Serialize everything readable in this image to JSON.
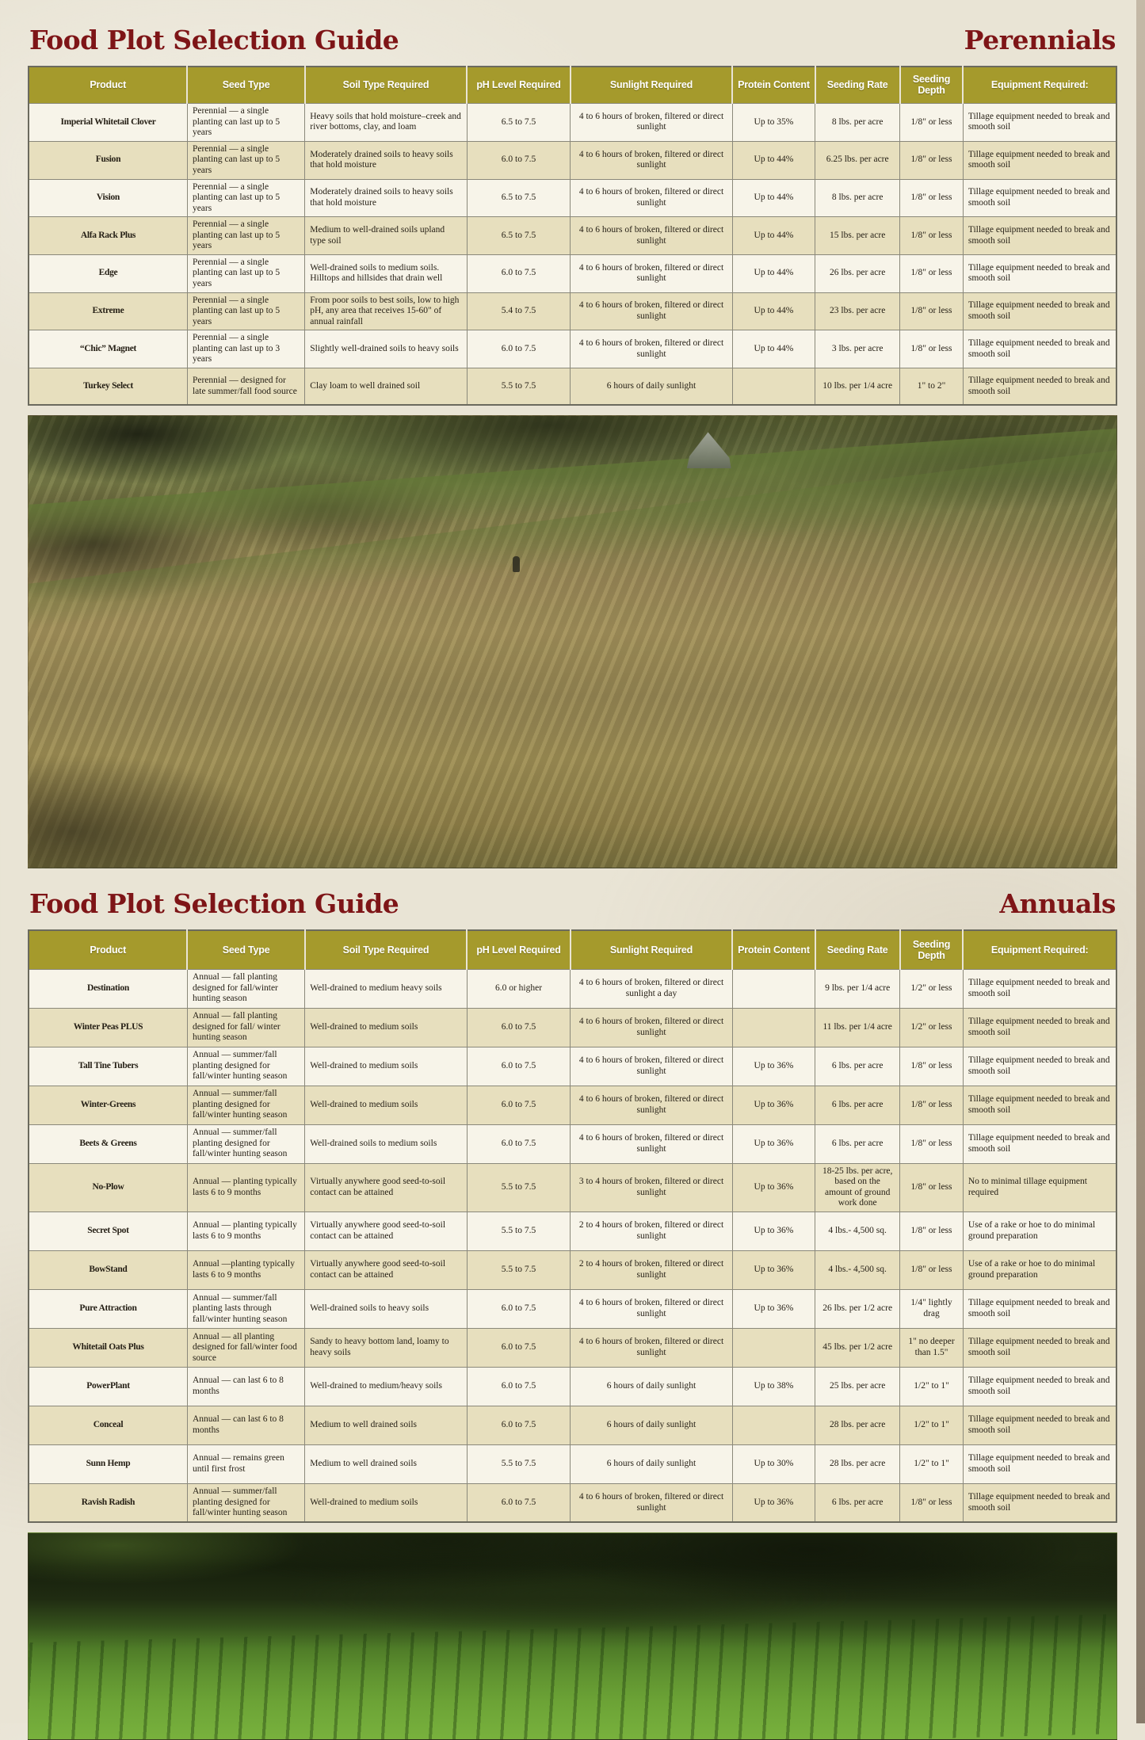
{
  "sections": {
    "perennials": {
      "title": "Food Plot Selection Guide",
      "subtitle": "Perennials"
    },
    "annuals": {
      "title": "Food Plot Selection Guide",
      "subtitle": "Annuals"
    }
  },
  "colors": {
    "title_maroon": "#7e1517",
    "product_maroon": "#8c1a1b",
    "header_olive": "#a59a2c",
    "row_tan": "#e7dfbe",
    "row_light": "#f7f4e9",
    "page_background": "#e9e4d5"
  },
  "columns": [
    "Product",
    "Seed Type",
    "Soil Type Required",
    "pH Level Required",
    "Sunlight Required",
    "Protein Content",
    "Seeding Rate",
    "Seeding Depth",
    "Equipment Required:"
  ],
  "perennials": {
    "rows": [
      {
        "product": "Imperial Whitetail Clover",
        "seed_type": "Perennial — a single planting can last up to 5 years",
        "soil_type": "Heavy soils that hold moisture–creek and river bottoms, clay, and loam",
        "ph": "6.5 to 7.5",
        "sunlight": "4 to 6 hours of broken, filtered or direct sunlight",
        "protein": "Up to 35%",
        "rate": "8 lbs. per acre",
        "depth": "1/8\" or less",
        "equipment": "Tillage equipment needed to break and smooth soil"
      },
      {
        "product": "Fusion",
        "seed_type": "Perennial — a single planting can last up to 5 years",
        "soil_type": "Moderately drained soils to heavy soils that hold moisture",
        "ph": "6.0 to 7.5",
        "sunlight": "4 to 6 hours of broken, filtered or direct sunlight",
        "protein": "Up to 44%",
        "rate": "6.25 lbs. per acre",
        "depth": "1/8\" or less",
        "equipment": "Tillage equipment needed to break and smooth soil"
      },
      {
        "product": "Vision",
        "seed_type": "Perennial — a single planting can last up to 5 years",
        "soil_type": "Moderately drained soils to heavy soils that hold moisture",
        "ph": "6.5 to 7.5",
        "sunlight": "4 to 6 hours of broken, filtered or direct sunlight",
        "protein": "Up to 44%",
        "rate": "8 lbs. per acre",
        "depth": "1/8\" or less",
        "equipment": "Tillage equipment needed to break and smooth soil"
      },
      {
        "product": "Alfa Rack Plus",
        "seed_type": "Perennial — a single planting can last up to 5 years",
        "soil_type": "Medium to well-drained soils  upland type soil",
        "ph": "6.5 to 7.5",
        "sunlight": "4 to 6 hours of broken, filtered or direct sunlight",
        "protein": "Up to 44%",
        "rate": "15 lbs. per acre",
        "depth": "1/8\" or less",
        "equipment": "Tillage equipment needed to break and smooth soil"
      },
      {
        "product": "Edge",
        "seed_type": "Perennial — a single planting can last up to 5 years",
        "soil_type": "Well-drained soils to medium soils. Hilltops and hillsides that drain well",
        "ph": "6.0 to 7.5",
        "sunlight": "4 to 6 hours of broken, filtered or direct sunlight",
        "protein": "Up to 44%",
        "rate": "26 lbs. per acre",
        "depth": "1/8\" or less",
        "equipment": "Tillage equipment needed to break and smooth soil"
      },
      {
        "product": "Extreme",
        "seed_type": "Perennial — a single planting can last up to 5 years",
        "soil_type": "From poor soils to best soils, low to high pH, any area that receives 15-60\" of annual rainfall",
        "ph": "5.4 to 7.5",
        "sunlight": "4 to 6 hours of broken, filtered or direct sunlight",
        "protein": "Up to 44%",
        "rate": "23 lbs. per acre",
        "depth": "1/8\" or less",
        "equipment": "Tillage equipment needed to break and smooth soil"
      },
      {
        "product": "“Chic” Magnet",
        "seed_type": "Perennial — a single planting can last up to 3 years",
        "soil_type": "Slightly well-drained soils to heavy soils",
        "ph": "6.0 to 7.5",
        "sunlight": "4 to 6 hours of broken, filtered or direct sunlight",
        "protein": "Up to 44%",
        "rate": "3 lbs. per acre",
        "depth": "1/8\" or less",
        "equipment": "Tillage equipment needed to break and smooth soil"
      },
      {
        "product": "Turkey Select",
        "seed_type": "Perennial — designed for late summer/fall food source",
        "soil_type": "Clay loam to well drained soil",
        "ph": "5.5 to 7.5",
        "sunlight": "6 hours of daily sunlight",
        "protein": "",
        "rate": "10 lbs. per 1/4 acre",
        "depth": "1\" to 2\"",
        "equipment": "Tillage equipment needed to break and smooth soil"
      }
    ]
  },
  "annuals": {
    "rows": [
      {
        "product": "Destination",
        "seed_type": "Annual — fall planting designed for fall/winter hunting season",
        "soil_type": "Well-drained to medium heavy soils",
        "ph": "6.0 or higher",
        "sunlight": "4 to 6 hours of broken,  filtered or direct sunlight a  day",
        "protein": "",
        "rate": "9 lbs. per 1/4 acre",
        "depth": "1/2\" or less",
        "equipment": "Tillage equipment needed to break and smooth soil"
      },
      {
        "product": "Winter Peas PLUS",
        "seed_type": "Annual — fall planting designed for fall/ winter hunting season",
        "soil_type": "Well-drained to medium soils",
        "ph": "6.0 to 7.5",
        "sunlight": "4 to 6 hours of broken, filtered or direct sunlight",
        "protein": "",
        "rate": "11 lbs. per 1/4 acre",
        "depth": "1/2\" or less",
        "equipment": "Tillage equipment needed to break and smooth soil"
      },
      {
        "product": "Tall Tine Tubers",
        "seed_type": "Annual  — summer/fall planting designed for fall/winter hunting season",
        "soil_type": "Well-drained to medium soils",
        "ph": "6.0 to 7.5",
        "sunlight": "4 to 6 hours of broken, filtered or direct sunlight",
        "protein": "Up to 36%",
        "rate": "6 lbs. per acre",
        "depth": "1/8\" or less",
        "equipment": "Tillage equipment needed to break and smooth soil"
      },
      {
        "product": "Winter-Greens",
        "seed_type": "Annual  — summer/fall planting designed for fall/winter hunting season",
        "soil_type": "Well-drained to medium soils",
        "ph": "6.0 to 7.5",
        "sunlight": "4 to 6 hours of broken, filtered or direct sunlight",
        "protein": "Up to 36%",
        "rate": "6 lbs. per acre",
        "depth": "1/8\" or less",
        "equipment": "Tillage equipment needed to break and smooth soil"
      },
      {
        "product": "Beets & Greens",
        "seed_type": "Annual  — summer/fall planting designed for fall/winter hunting season",
        "soil_type": "Well-drained soils to medium soils",
        "ph": "6.0 to 7.5",
        "sunlight": "4 to 6 hours of broken, filtered or direct sunlight",
        "protein": "Up to 36%",
        "rate": "6 lbs. per acre",
        "depth": "1/8\" or less",
        "equipment": "Tillage equipment needed to break and smooth soil"
      },
      {
        "product": "No-Plow",
        "seed_type": "Annual — planting typically lasts 6 to 9 months",
        "soil_type": "Virtually anywhere good seed-to-soil contact can be attained",
        "ph": "5.5 to 7.5",
        "sunlight": "3 to 4 hours of broken, filtered or direct sunlight",
        "protein": "Up to 36%",
        "rate": "18-25 lbs. per acre, based on the amount of ground work done",
        "depth": "1/8\" or less",
        "equipment": "No to minimal tillage equipment required"
      },
      {
        "product": "Secret Spot",
        "seed_type": "Annual — planting typically lasts 6 to 9 months",
        "soil_type": "Virtually anywhere good seed-to-soil contact can be attained",
        "ph": "5.5 to 7.5",
        "sunlight": "2 to 4 hours of broken, filtered or direct sunlight",
        "protein": "Up to 36%",
        "rate": "4 lbs.- 4,500 sq.",
        "depth": "1/8\" or less",
        "equipment": "Use of a rake or hoe to do minimal ground preparation"
      },
      {
        "product": "BowStand",
        "seed_type": "Annual —planting typically lasts 6 to 9 months",
        "soil_type": "Virtually anywhere good seed-to-soil contact can be attained",
        "ph": "5.5 to 7.5",
        "sunlight": "2 to 4 hours of broken, filtered or direct sunlight",
        "protein": "Up to 36%",
        "rate": "4 lbs.- 4,500 sq.",
        "depth": "1/8\" or less",
        "equipment": "Use of a rake or hoe to do minimal ground preparation"
      },
      {
        "product": "Pure Attraction",
        "seed_type": "Annual — summer/fall planting lasts through fall/winter hunting season",
        "soil_type": "Well-drained soils to heavy soils",
        "ph": "6.0 to 7.5",
        "sunlight": "4 to 6 hours of broken, filtered or direct sunlight",
        "protein": "Up to 36%",
        "rate": "26 lbs. per 1/2 acre",
        "depth": "1/4\" lightly drag",
        "equipment": "Tillage equipment needed to break and smooth soil"
      },
      {
        "product": "Whitetail Oats Plus",
        "seed_type": "Annual  — all planting designed for fall/winter food source",
        "soil_type": "Sandy to heavy bottom land, loamy to heavy soils",
        "ph": "6.0 to 7.5",
        "sunlight": "4 to 6 hours of broken, filtered or direct sunlight",
        "protein": "",
        "rate": "45 lbs. per 1/2 acre",
        "depth": "1\" no deeper than 1.5\"",
        "equipment": "Tillage equipment needed to break and smooth soil"
      },
      {
        "product": "PowerPlant",
        "seed_type": "Annual — can last 6 to 8 months",
        "soil_type": "Well-drained to medium/heavy soils",
        "ph": "6.0 to 7.5",
        "sunlight": "6 hours of daily sunlight",
        "protein": "Up to 38%",
        "rate": "25 lbs. per acre",
        "depth": "1/2\" to 1\"",
        "equipment": "Tillage equipment needed to break and smooth soil"
      },
      {
        "product": "Conceal",
        "seed_type": "Annual — can last 6 to 8 months",
        "soil_type": "Medium to well drained soils",
        "ph": "6.0 to 7.5",
        "sunlight": "6 hours of daily sunlight",
        "protein": "",
        "rate": "28 lbs. per acre",
        "depth": "1/2\"  to 1\"",
        "equipment": "Tillage equipment needed to break and smooth soil"
      },
      {
        "product": "Sunn Hemp",
        "seed_type": "Annual — remains green until first frost",
        "soil_type": "Medium to well drained soils",
        "ph": "5.5 to 7.5",
        "sunlight": "6 hours of daily sunlight",
        "protein": "Up to 30%",
        "rate": "28 lbs. per acre",
        "depth": "1/2\" to 1\"",
        "equipment": "Tillage equipment needed to break and smooth soil"
      },
      {
        "product": "Ravish Radish",
        "seed_type": "Annual  — summer/fall planting designed for fall/winter hunting season",
        "soil_type": "Well-drained to medium soils",
        "ph": "6.0 to 7.5",
        "sunlight": "4 to 6 hours of broken, filtered or direct sunlight",
        "protein": "Up to 36%",
        "rate": "6 lbs. per acre",
        "depth": "1/8\" or less",
        "equipment": "Tillage equipment needed to break and smooth soil"
      }
    ]
  }
}
